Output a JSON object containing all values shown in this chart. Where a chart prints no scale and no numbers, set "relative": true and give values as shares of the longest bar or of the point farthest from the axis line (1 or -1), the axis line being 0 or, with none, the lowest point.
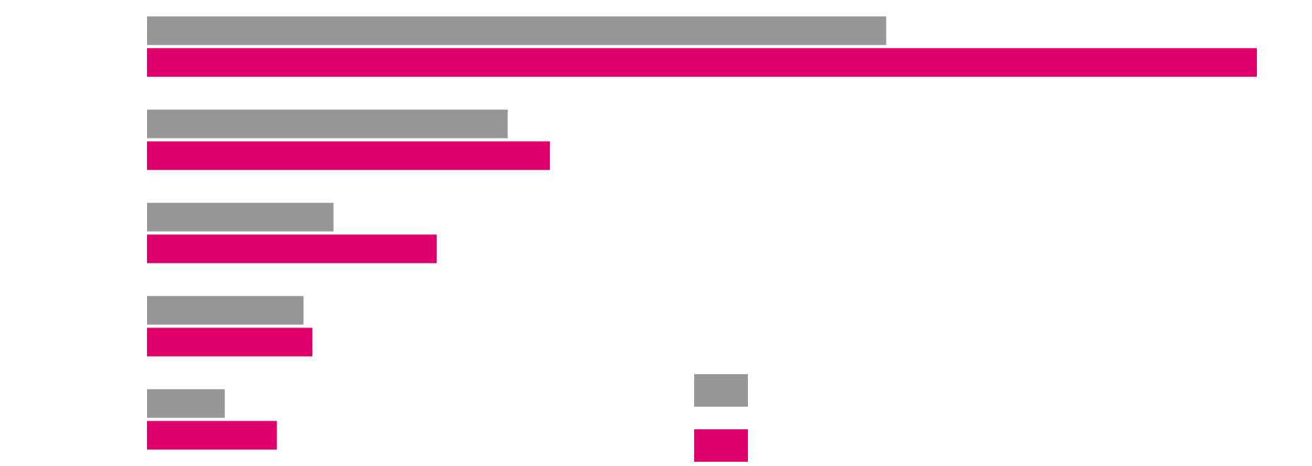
{
  "chart_data": {
    "type": "bar",
    "orientation": "horizontal",
    "relative": true,
    "categories": [
      null,
      null,
      null,
      null,
      null
    ],
    "series": [
      {
        "color": "#969696",
        "values": [
          0.666,
          0.325,
          0.168,
          0.141,
          0.07
        ]
      },
      {
        "color": "#e0006c",
        "values": [
          1,
          0.363,
          0.261,
          0.149,
          0.117
        ]
      }
    ]
  }
}
